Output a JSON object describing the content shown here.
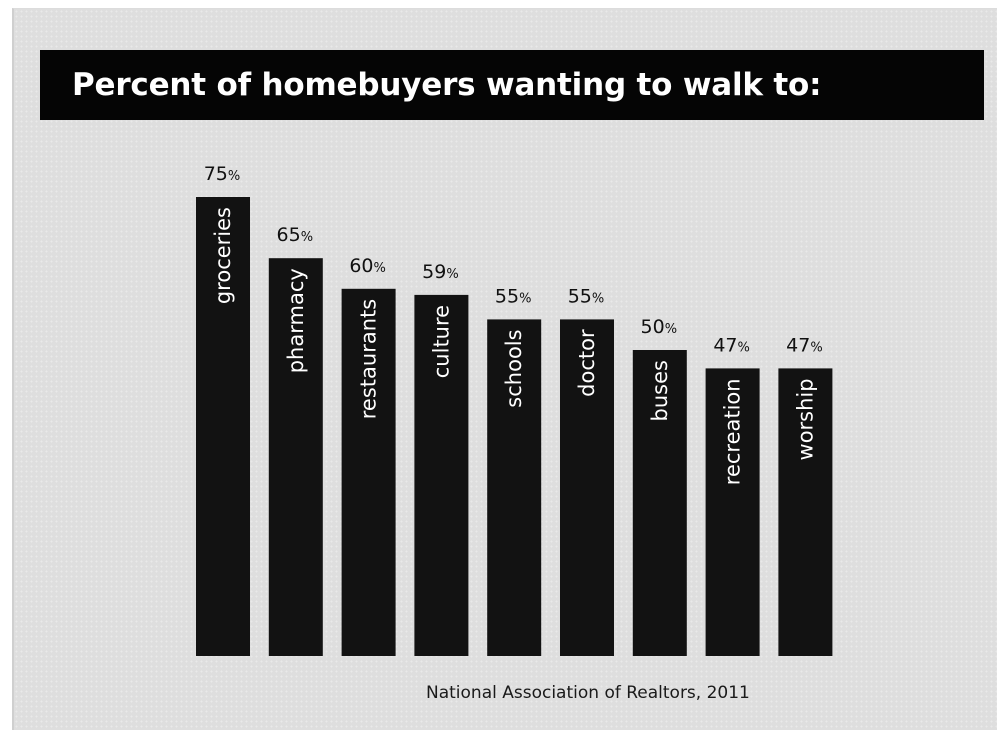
{
  "chart_data": {
    "type": "bar",
    "title": "Percent of homebuyers wanting to walk to:",
    "categories": [
      "groceries",
      "pharmacy",
      "restaurants",
      "culture",
      "schools",
      "doctor",
      "buses",
      "recreation",
      "worship"
    ],
    "values": [
      75,
      65,
      60,
      59,
      55,
      55,
      50,
      47,
      47
    ],
    "value_suffix": "%",
    "bar_color": "#121212",
    "label_color": "#ffffff",
    "category_label_placement": "inside-top-rotated",
    "value_label_placement": "above-bar",
    "ylim": [
      0,
      75
    ],
    "grid": false,
    "legend": "none"
  },
  "source_note": "National Association of Realtors, 2011"
}
